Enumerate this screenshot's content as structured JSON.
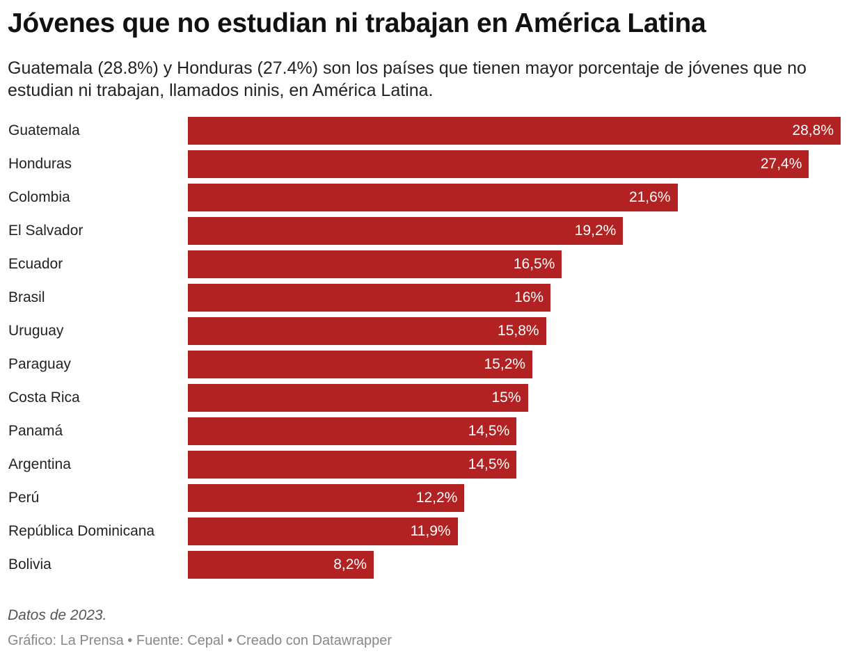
{
  "chart_data": {
    "type": "bar",
    "orientation": "horizontal",
    "title": "Jóvenes que no estudian ni trabajan en América Latina",
    "subtitle": "Guatemala (28.8%) y Honduras (27.4%) son los países que tienen mayor porcentaje de jóvenes que no estudian ni trabajan, llamados ninis, en América Latina.",
    "categories": [
      "Guatemala",
      "Honduras",
      "Colombia",
      "El Salvador",
      "Ecuador",
      "Brasil",
      "Uruguay",
      "Paraguay",
      "Costa Rica",
      "Panamá",
      "Argentina",
      "Perú",
      "República Dominicana",
      "Bolivia"
    ],
    "values": [
      28.8,
      27.4,
      21.6,
      19.2,
      16.5,
      16,
      15.8,
      15.2,
      15,
      14.5,
      14.5,
      12.2,
      11.9,
      8.2
    ],
    "labels": [
      "28,8%",
      "27,4%",
      "21,6%",
      "19,2%",
      "16,5%",
      "16%",
      "15,8%",
      "15,2%",
      "15%",
      "14,5%",
      "14,5%",
      "12,2%",
      "11,9%",
      "8,2%"
    ],
    "xlim": [
      0,
      28.8
    ],
    "grid": false,
    "bar_color": "#b22222"
  },
  "notes": "Datos de 2023.",
  "credit": "Gráfico: La Prensa • Fuente: Cepal • Creado con Datawrapper"
}
